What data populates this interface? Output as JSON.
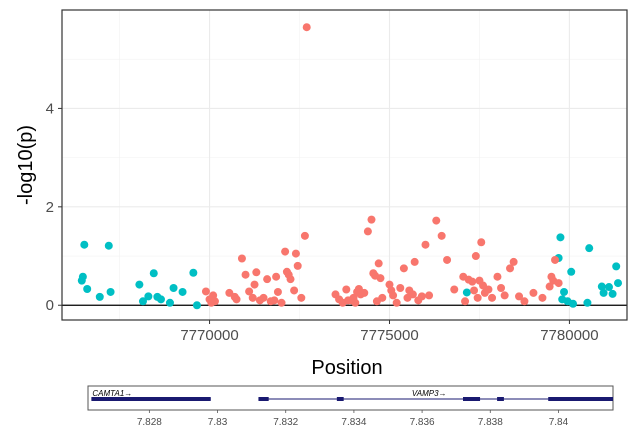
{
  "chart_data": [
    {
      "type": "scatter",
      "xlabel": "Position",
      "ylabel": "-log10(p)",
      "xlim": [
        7765900,
        7781600
      ],
      "ylim": [
        -0.3,
        6.0
      ],
      "xticks": [
        7770000,
        7775000,
        7780000
      ],
      "xtick_labels": [
        "7770000",
        "7775000",
        "7780000"
      ],
      "yticks": [
        0,
        2,
        4
      ],
      "ytick_labels": [
        "0",
        "2",
        "4"
      ],
      "minor_xticks": [
        7767500,
        7772500,
        7777500
      ],
      "minor_yticks": [
        1,
        3,
        5
      ],
      "grid": true,
      "hline": 0,
      "legend": "none",
      "colors": {
        "red": "#f8766d",
        "teal": "#00bfc4"
      },
      "series": [
        {
          "color": "teal",
          "points": [
            [
              7766450,
              0.5
            ],
            [
              7766480,
              0.58
            ],
            [
              7766520,
              1.23
            ],
            [
              7766600,
              0.33
            ],
            [
              7766950,
              0.17
            ],
            [
              7767200,
              1.21
            ],
            [
              7767250,
              0.27
            ],
            [
              7768050,
              0.42
            ],
            [
              7768150,
              0.08
            ],
            [
              7768300,
              0.18
            ],
            [
              7768450,
              0.65
            ],
            [
              7768550,
              0.17
            ],
            [
              7768650,
              0.12
            ],
            [
              7768900,
              0.05
            ],
            [
              7769000,
              0.35
            ],
            [
              7769250,
              0.27
            ],
            [
              7769550,
              0.66
            ],
            [
              7769650,
              0.0
            ],
            [
              7777150,
              0.26
            ],
            [
              7779700,
              0.96
            ],
            [
              7779750,
              1.38
            ],
            [
              7779800,
              0.12
            ],
            [
              7779850,
              0.27
            ],
            [
              7779950,
              0.08
            ],
            [
              7780050,
              0.68
            ],
            [
              7780100,
              0.03
            ],
            [
              7780500,
              0.05
            ],
            [
              7780550,
              1.16
            ],
            [
              7780900,
              0.38
            ],
            [
              7780950,
              0.25
            ],
            [
              7781100,
              0.37
            ],
            [
              7781200,
              0.23
            ],
            [
              7781300,
              0.79
            ],
            [
              7781350,
              0.45
            ]
          ]
        },
        {
          "color": "red",
          "points": [
            [
              7769900,
              0.28
            ],
            [
              7770000,
              0.12
            ],
            [
              7770050,
              0.05
            ],
            [
              7770100,
              0.2
            ],
            [
              7770150,
              0.08
            ],
            [
              7770550,
              0.25
            ],
            [
              7770700,
              0.17
            ],
            [
              7770750,
              0.12
            ],
            [
              7770900,
              0.95
            ],
            [
              7771000,
              0.62
            ],
            [
              7771100,
              0.28
            ],
            [
              7771200,
              0.15
            ],
            [
              7771250,
              0.42
            ],
            [
              7771300,
              0.67
            ],
            [
              7771400,
              0.1
            ],
            [
              7771500,
              0.15
            ],
            [
              7771600,
              0.53
            ],
            [
              7771700,
              0.08
            ],
            [
              7771800,
              0.1
            ],
            [
              7771850,
              0.58
            ],
            [
              7771900,
              0.27
            ],
            [
              7772000,
              0.05
            ],
            [
              7772100,
              1.09
            ],
            [
              7772150,
              0.68
            ],
            [
              7772200,
              0.62
            ],
            [
              7772250,
              0.53
            ],
            [
              7772350,
              0.3
            ],
            [
              7772400,
              1.05
            ],
            [
              7772450,
              0.8
            ],
            [
              7772550,
              0.15
            ],
            [
              7772650,
              1.41
            ],
            [
              7772700,
              5.65
            ],
            [
              7773500,
              0.22
            ],
            [
              7773600,
              0.12
            ],
            [
              7773700,
              0.05
            ],
            [
              7773800,
              0.32
            ],
            [
              7773850,
              0.1
            ],
            [
              7773950,
              0.1
            ],
            [
              7774000,
              0.15
            ],
            [
              7774050,
              0.05
            ],
            [
              7774100,
              0.27
            ],
            [
              7774150,
              0.33
            ],
            [
              7774200,
              0.22
            ],
            [
              7774300,
              0.25
            ],
            [
              7774400,
              1.5
            ],
            [
              7774500,
              1.74
            ],
            [
              7774550,
              0.65
            ],
            [
              7774600,
              0.6
            ],
            [
              7774650,
              0.08
            ],
            [
              7774700,
              0.85
            ],
            [
              7774750,
              0.55
            ],
            [
              7774800,
              0.15
            ],
            [
              7775000,
              0.42
            ],
            [
              7775050,
              0.3
            ],
            [
              7775100,
              0.2
            ],
            [
              7775200,
              0.05
            ],
            [
              7775300,
              0.35
            ],
            [
              7775400,
              0.75
            ],
            [
              7775500,
              0.15
            ],
            [
              7775550,
              0.3
            ],
            [
              7775650,
              0.22
            ],
            [
              7775700,
              0.88
            ],
            [
              7775800,
              0.1
            ],
            [
              7775900,
              0.18
            ],
            [
              7776000,
              1.23
            ],
            [
              7776100,
              0.2
            ],
            [
              7776300,
              1.72
            ],
            [
              7776450,
              1.41
            ],
            [
              7776600,
              0.92
            ],
            [
              7776800,
              0.32
            ],
            [
              7777050,
              0.58
            ],
            [
              7777100,
              0.08
            ],
            [
              7777200,
              0.52
            ],
            [
              7777300,
              0.48
            ],
            [
              7777350,
              0.3
            ],
            [
              7777400,
              1.0
            ],
            [
              7777450,
              0.15
            ],
            [
              7777500,
              0.5
            ],
            [
              7777550,
              1.28
            ],
            [
              7777600,
              0.4
            ],
            [
              7777650,
              0.25
            ],
            [
              7777750,
              0.32
            ],
            [
              7777850,
              0.15
            ],
            [
              7778000,
              0.58
            ],
            [
              7778100,
              0.35
            ],
            [
              7778200,
              0.2
            ],
            [
              7778350,
              0.75
            ],
            [
              7778450,
              0.88
            ],
            [
              7778600,
              0.18
            ],
            [
              7778750,
              0.08
            ],
            [
              7779000,
              0.25
            ],
            [
              7779250,
              0.15
            ],
            [
              7779450,
              0.38
            ],
            [
              7779500,
              0.58
            ],
            [
              7779550,
              0.5
            ],
            [
              7779600,
              0.92
            ],
            [
              7779700,
              0.45
            ]
          ]
        }
      ]
    },
    {
      "type": "gene-track",
      "xlim": [
        7.8262,
        7.8416
      ],
      "xticks": [
        7.828,
        7.83,
        7.832,
        7.834,
        7.836,
        7.838,
        7.84
      ],
      "xtick_labels": [
        "7.828",
        "7.83",
        "7.832",
        "7.834",
        "7.836",
        "7.838",
        "7.84"
      ],
      "color": "#191970",
      "genes": [
        {
          "name": "CAMTA1",
          "label": "CAMTA1→",
          "start": 7.8263,
          "end": 7.8298,
          "exons": [
            [
              7.8263,
              7.8298
            ]
          ]
        },
        {
          "name": "VAMP3",
          "label": "VAMP3→",
          "start": 7.8312,
          "end": 7.8416,
          "exons": [
            [
              7.8312,
              7.8315
            ],
            [
              7.8335,
              7.8337
            ],
            [
              7.8372,
              7.8377
            ],
            [
              7.8382,
              7.8384
            ],
            [
              7.8397,
              7.8416
            ]
          ]
        }
      ]
    }
  ]
}
